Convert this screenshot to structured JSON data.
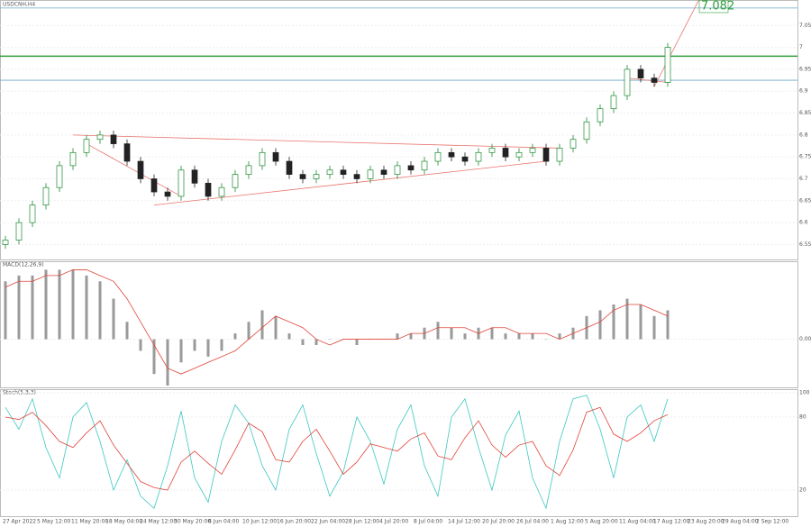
{
  "x_labels": [
    "27 Apr 2022",
    "5 May 12:00",
    "11 May 20:00",
    "18 May 04:00",
    "24 May 12:00",
    "30 May 20:00",
    "6 Jun 04:00",
    "10 Jun 12:00",
    "16 Jun 20:00",
    "22 Jun 04:00",
    "28 Jun 12:00",
    "4 Jul 20:00",
    "8 Jul 04:00",
    "14 Jul 12:00",
    "20 Jul 20:00",
    "26 Jul 04:00",
    "1 Aug 12:00",
    "5 Aug 20:00",
    "11 Aug 04:00",
    "17 Aug 12:00",
    "23 Aug 20:00",
    "29 Aug 04:00",
    "2 Sep 12:00"
  ],
  "chart_data": [
    {
      "type": "candlestick",
      "title": "USDCNH,H4",
      "up_color": "#1b8a2e",
      "down_color": "#222222",
      "candles": [
        [
          6.55,
          6.57,
          6.54,
          6.56
        ],
        [
          6.56,
          6.61,
          6.55,
          6.6
        ],
        [
          6.6,
          6.65,
          6.59,
          6.64
        ],
        [
          6.64,
          6.69,
          6.63,
          6.68
        ],
        [
          6.68,
          6.74,
          6.67,
          6.73
        ],
        [
          6.73,
          6.77,
          6.72,
          6.76
        ],
        [
          6.76,
          6.8,
          6.75,
          6.79
        ],
        [
          6.79,
          6.81,
          6.78,
          6.8
        ],
        [
          6.8,
          6.81,
          6.77,
          6.78
        ],
        [
          6.78,
          6.79,
          6.73,
          6.74
        ],
        [
          6.74,
          6.75,
          6.69,
          6.7
        ],
        [
          6.7,
          6.71,
          6.66,
          6.67
        ],
        [
          6.67,
          6.68,
          6.65,
          6.66
        ],
        [
          6.66,
          6.73,
          6.65,
          6.72
        ],
        [
          6.72,
          6.73,
          6.68,
          6.69
        ],
        [
          6.69,
          6.7,
          6.65,
          6.66
        ],
        [
          6.66,
          6.69,
          6.65,
          6.68
        ],
        [
          6.68,
          6.72,
          6.67,
          6.71
        ],
        [
          6.71,
          6.74,
          6.7,
          6.73
        ],
        [
          6.73,
          6.77,
          6.72,
          6.76
        ],
        [
          6.76,
          6.77,
          6.73,
          6.74
        ],
        [
          6.74,
          6.75,
          6.7,
          6.71
        ],
        [
          6.71,
          6.72,
          6.69,
          6.7
        ],
        [
          6.7,
          6.72,
          6.69,
          6.71
        ],
        [
          6.71,
          6.73,
          6.7,
          6.72
        ],
        [
          6.72,
          6.73,
          6.7,
          6.71
        ],
        [
          6.71,
          6.72,
          6.69,
          6.7
        ],
        [
          6.7,
          6.73,
          6.69,
          6.72
        ],
        [
          6.72,
          6.73,
          6.7,
          6.71
        ],
        [
          6.71,
          6.74,
          6.7,
          6.73
        ],
        [
          6.73,
          6.74,
          6.71,
          6.72
        ],
        [
          6.72,
          6.75,
          6.71,
          6.74
        ],
        [
          6.74,
          6.77,
          6.73,
          6.76
        ],
        [
          6.76,
          6.77,
          6.74,
          6.75
        ],
        [
          6.75,
          6.76,
          6.73,
          6.74
        ],
        [
          6.74,
          6.77,
          6.73,
          6.76
        ],
        [
          6.76,
          6.78,
          6.75,
          6.77
        ],
        [
          6.77,
          6.78,
          6.74,
          6.75
        ],
        [
          6.75,
          6.77,
          6.74,
          6.76
        ],
        [
          6.76,
          6.78,
          6.75,
          6.77
        ],
        [
          6.77,
          6.78,
          6.73,
          6.74
        ],
        [
          6.74,
          6.78,
          6.73,
          6.77
        ],
        [
          6.77,
          6.8,
          6.76,
          6.79
        ],
        [
          6.79,
          6.84,
          6.78,
          6.83
        ],
        [
          6.83,
          6.87,
          6.82,
          6.86
        ],
        [
          6.86,
          6.9,
          6.85,
          6.89
        ],
        [
          6.89,
          6.96,
          6.88,
          6.95
        ],
        [
          6.95,
          6.96,
          6.92,
          6.93
        ],
        [
          6.93,
          6.94,
          6.91,
          6.92
        ],
        [
          6.92,
          7.01,
          6.91,
          7.0
        ]
      ],
      "ylim": [
        6.52,
        7.1
      ],
      "yticks": [
        6.55,
        6.6,
        6.65,
        6.7,
        6.75,
        6.8,
        6.85,
        6.9,
        6.95,
        7.0,
        7.05
      ],
      "levels": [
        {
          "value": 7.09,
          "color": "#6aa8c8"
        },
        {
          "value": 6.98,
          "color": "#2e9e3a"
        },
        {
          "value": 6.925,
          "color": "#6aa8c8"
        }
      ],
      "trendlines": [
        {
          "points": [
            5,
            6.8,
            41,
            6.77
          ],
          "color": "#e8736b"
        },
        {
          "points": [
            11,
            6.64,
            40,
            6.74
          ],
          "color": "#e8736b"
        },
        {
          "points": [
            6,
            6.78,
            13,
            6.66
          ],
          "color": "#e8736b"
        },
        {
          "points": [
            48,
            6.91,
            51.5,
            7.12
          ],
          "color": "#e8736b"
        },
        {
          "points": [
            46,
            6.93,
            49,
            6.92
          ],
          "color": "#e8736b"
        }
      ],
      "annotation": "7.082"
    },
    {
      "type": "macd",
      "title": "MACD(12,26,9)",
      "ylim": [
        -0.008,
        0.013
      ],
      "yticks": [
        {
          "value": 0,
          "label": "0.00"
        }
      ],
      "histogram": {
        "color": "#9a9a9a",
        "values": [
          0.01,
          0.011,
          0.011,
          0.012,
          0.012,
          0.012,
          0.011,
          0.01,
          0.007,
          0.003,
          -0.002,
          -0.006,
          -0.008,
          -0.004,
          -0.002,
          -0.003,
          -0.002,
          0.001,
          0.003,
          0.005,
          0.004,
          0.001,
          -0.001,
          -0.001,
          0,
          0,
          -0.001,
          0,
          0,
          0.001,
          0.001,
          0.002,
          0.003,
          0.002,
          0.001,
          0.002,
          0.002,
          0.001,
          0.001,
          0.001,
          0,
          0.001,
          0.002,
          0.004,
          0.005,
          0.006,
          0.007,
          0.006,
          0.004,
          0.005
        ]
      },
      "signal": {
        "color": "#e0443a",
        "values": [
          0.009,
          0.01,
          0.01,
          0.011,
          0.011,
          0.012,
          0.012,
          0.011,
          0.01,
          0.007,
          0.003,
          -0.001,
          -0.005,
          -0.006,
          -0.005,
          -0.004,
          -0.003,
          -0.002,
          0,
          0.002,
          0.004,
          0.003,
          0.002,
          0,
          -0.001,
          0,
          0,
          0,
          0,
          0,
          0.001,
          0.001,
          0.002,
          0.002,
          0.002,
          0.001,
          0.002,
          0.002,
          0.001,
          0.001,
          0.001,
          0,
          0.001,
          0.002,
          0.003,
          0.005,
          0.006,
          0.006,
          0.005,
          0.004
        ]
      }
    },
    {
      "type": "line",
      "title": "Stoch(5,3,3)",
      "ylim": [
        0,
        100
      ],
      "yticks": [
        20,
        80,
        100
      ],
      "lines": [
        {
          "color": "#3cc8c0",
          "values": [
            88,
            70,
            95,
            55,
            30,
            80,
            92,
            60,
            20,
            45,
            15,
            5,
            40,
            85,
            30,
            10,
            60,
            90,
            75,
            40,
            20,
            70,
            90,
            50,
            15,
            35,
            80,
            60,
            25,
            70,
            90,
            40,
            15,
            80,
            95,
            55,
            20,
            65,
            85,
            30,
            5,
            60,
            95,
            98,
            70,
            30,
            80,
            90,
            60,
            95
          ]
        },
        {
          "color": "#e0443a",
          "values": [
            80,
            78,
            84,
            73,
            60,
            55,
            67,
            77,
            57,
            42,
            27,
            22,
            20,
            43,
            52,
            42,
            33,
            53,
            75,
            68,
            45,
            43,
            60,
            70,
            52,
            33,
            43,
            58,
            55,
            52,
            62,
            67,
            48,
            45,
            63,
            77,
            57,
            47,
            57,
            60,
            40,
            32,
            53,
            84,
            88,
            66,
            60,
            67,
            77,
            82
          ]
        }
      ]
    }
  ]
}
